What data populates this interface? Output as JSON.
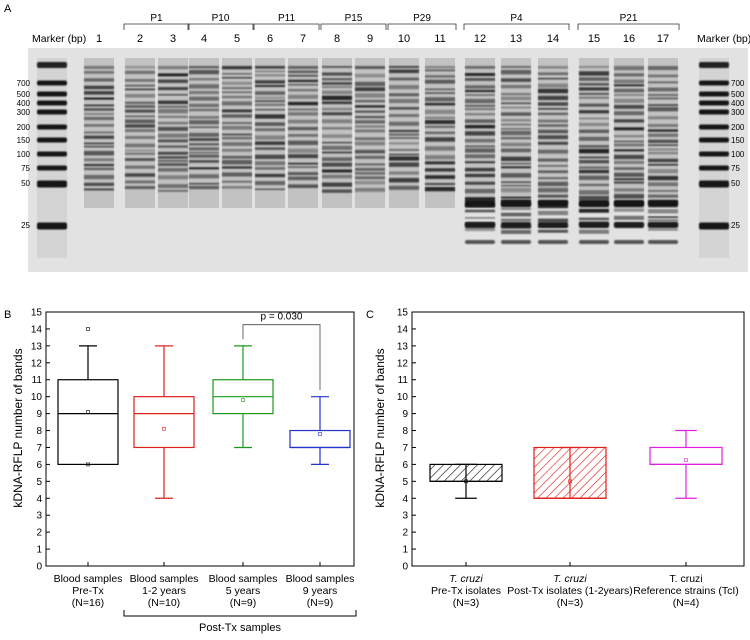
{
  "panels": {
    "A": "A",
    "B": "B",
    "C": "C"
  },
  "gel": {
    "marker_label_left": "Marker (bp)",
    "marker_label_right": "Marker (bp)",
    "lane_numbers": [
      "1",
      "2",
      "3",
      "4",
      "5",
      "6",
      "7",
      "8",
      "9",
      "10",
      "11",
      "12",
      "13",
      "14",
      "15",
      "16",
      "17"
    ],
    "groups": [
      {
        "label": "P1",
        "lanes": [
          "2",
          "3"
        ]
      },
      {
        "label": "P10",
        "lanes": [
          "4",
          "5"
        ]
      },
      {
        "label": "P11",
        "lanes": [
          "6",
          "7"
        ]
      },
      {
        "label": "P15",
        "lanes": [
          "8",
          "9"
        ]
      },
      {
        "label": "P29",
        "lanes": [
          "10",
          "11"
        ]
      },
      {
        "label": "P4",
        "lanes": [
          "12",
          "13",
          "14"
        ]
      },
      {
        "label": "P21",
        "lanes": [
          "15",
          "16",
          "17"
        ]
      }
    ],
    "marker_sizes": [
      "700",
      "500",
      "400",
      "300",
      "200",
      "150",
      "100",
      "75",
      "50",
      "25"
    ],
    "colors": {
      "background": "#e2e2e2",
      "band": "#1a1a1a"
    }
  },
  "chart_data": [
    {
      "type": "box",
      "panel": "B",
      "ylabel": "kDNA-RFLP number of bands",
      "ylim": [
        0,
        15
      ],
      "yticks": [
        "0",
        "1",
        "2",
        "3",
        "4",
        "5",
        "6",
        "7",
        "8",
        "9",
        "10",
        "11",
        "12",
        "13",
        "14",
        "15"
      ],
      "groups": [
        {
          "line1": "Blood samples",
          "line2": "Pre-Tx",
          "line3": "(N=16)",
          "color": "#000000",
          "whisker_low": 6,
          "q1": 6,
          "median": 9,
          "q3": 11,
          "whisker_high": 13,
          "mean": 9.1,
          "outliers": [
            6,
            14
          ],
          "hatched": false
        },
        {
          "line1": "Blood samples",
          "line2": "1-2 years",
          "line3": "(N=10)",
          "color": "#e0201b",
          "whisker_low": 4,
          "q1": 7,
          "median": 9,
          "q3": 10,
          "whisker_high": 13,
          "mean": 8.1,
          "outliers": [],
          "hatched": false
        },
        {
          "line1": "Blood samples",
          "line2": "5 years",
          "line3": "(N=9)",
          "color": "#1a9a1a",
          "whisker_low": 7,
          "q1": 9,
          "median": 10,
          "q3": 11,
          "whisker_high": 13,
          "mean": 9.8,
          "outliers": [],
          "hatched": false
        },
        {
          "line1": "Blood samples",
          "line2": "9 years",
          "line3": "(N=9)",
          "color": "#2233cc",
          "whisker_low": 6,
          "q1": 7,
          "median": 7,
          "q3": 8,
          "whisker_high": 10,
          "mean": 7.8,
          "outliers": [],
          "hatched": false
        }
      ],
      "significance": {
        "label": "p = 0.030",
        "from_group": 2,
        "to_group": 3
      },
      "bracket_label": "Post-Tx samples"
    },
    {
      "type": "box",
      "panel": "C",
      "ylabel": "kDNA-RFLP number of bands",
      "ylim": [
        0,
        15
      ],
      "yticks": [
        "0",
        "1",
        "2",
        "3",
        "4",
        "5",
        "6",
        "7",
        "8",
        "9",
        "10",
        "11",
        "12",
        "13",
        "14",
        "15"
      ],
      "groups": [
        {
          "line1": "T. cruzi",
          "line2": "Pre-Tx isolates",
          "line3": "(N=3)",
          "color": "#000000",
          "whisker_low": 4,
          "q1": 5,
          "median": 5,
          "q3": 6,
          "whisker_high": 6,
          "mean": 5,
          "outliers": [],
          "hatched": true,
          "italic": true
        },
        {
          "line1": "T. cruzi",
          "line2": "Post-Tx isolates (1-2years)",
          "line3": "(N=3)",
          "color": "#e0201b",
          "whisker_low": 4,
          "q1": 4,
          "median": 4,
          "q3": 7,
          "whisker_high": 7,
          "mean": 5,
          "outliers": [],
          "hatched": true,
          "italic": true
        },
        {
          "line1": "T. cruzi",
          "line2": "Reference strains (TcI)",
          "line3": "(N=4)",
          "color": "#e020e0",
          "whisker_low": 4,
          "q1": 6,
          "median": 6,
          "q3": 7,
          "whisker_high": 8,
          "mean": 6.25,
          "outliers": [],
          "hatched": false,
          "italic": false
        }
      ]
    }
  ]
}
